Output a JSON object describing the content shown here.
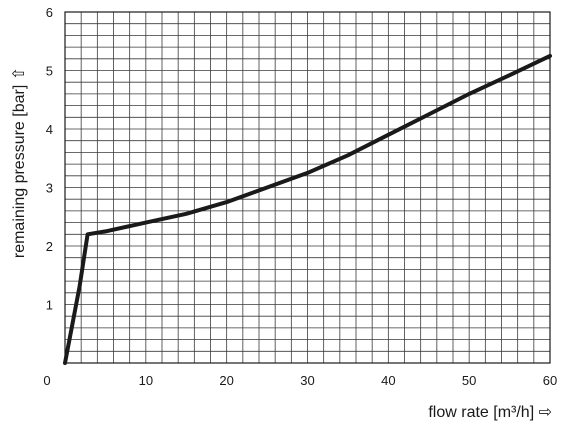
{
  "chart_data": {
    "type": "line",
    "xlabel": "flow rate [m³/h] ⇨",
    "ylabel": "remaining pressure [bar] ⇧",
    "xlim": [
      0,
      60
    ],
    "ylim": [
      0,
      6
    ],
    "x_ticks": [
      "0",
      "10",
      "20",
      "30",
      "40",
      "50",
      "60"
    ],
    "y_ticks": [
      "1",
      "2",
      "3",
      "4",
      "5",
      "6"
    ],
    "grid": true,
    "grid_x_step": 2,
    "grid_y_step": 0.2,
    "series": [
      {
        "x": [
          0,
          1.8,
          2.8,
          5,
          10,
          15,
          20,
          25,
          30,
          35,
          40,
          45,
          50,
          55,
          60
        ],
        "y": [
          0,
          1.3,
          2.2,
          2.25,
          2.4,
          2.55,
          2.75,
          3.0,
          3.25,
          3.55,
          3.9,
          4.25,
          4.6,
          4.92,
          5.25
        ]
      }
    ],
    "line_color": "#1a1a1a"
  }
}
